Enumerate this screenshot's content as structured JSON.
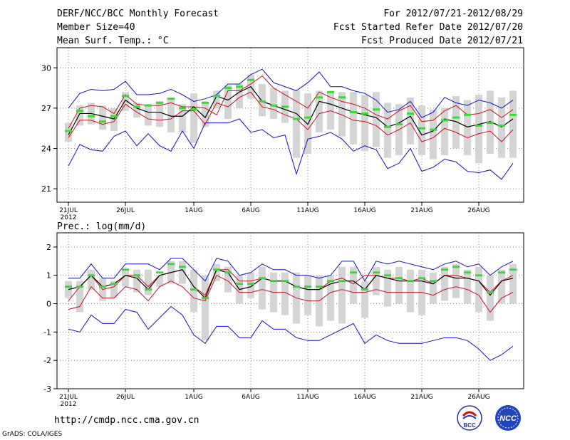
{
  "header": {
    "title": "DERF/NCC/BCC Monthly Forecast",
    "member_size": "Member Size=40",
    "variable": "Mean Surf. Temp.: °C",
    "period": "For 2012/07/21-2012/08/29",
    "start_date": "Fcst Started Refer Date 2012/07/20",
    "produced_date": "Fcst Produced Date 2012/07/21"
  },
  "footer": {
    "url": "http://cmdp.ncc.cma.gov.cn",
    "credit": "GrADS: COLA/IGES",
    "logo_left": "BCC",
    "logo_right": "NCC"
  },
  "colors": {
    "max_min": "#1010d0",
    "spread": "#d01020",
    "mean": "#000000",
    "box": "#d4d4d4",
    "obs": "#33dd33"
  },
  "chart_data": [
    {
      "type": "line",
      "title": "Mean Surf. Temp.: °C",
      "ylim": [
        20,
        31.5
      ],
      "yticks": [
        21,
        24,
        27,
        30
      ],
      "x_ticks": [
        "21JUL",
        "26JUL",
        "1AUG",
        "6AUG",
        "11AUG",
        "16AUG",
        "21AUG",
        "26AUG"
      ],
      "x_tick_day_index": [
        0,
        5,
        11,
        16,
        21,
        26,
        31,
        36
      ],
      "year_label": "2012",
      "grid": true,
      "days": 40,
      "series": [
        {
          "name": "max",
          "values": [
            27.0,
            28.1,
            28.4,
            28.3,
            28.4,
            29.0,
            28.0,
            28.0,
            28.1,
            28.4,
            28.0,
            27.5,
            27.7,
            28.0,
            28.8,
            28.8,
            29.5,
            29.9,
            28.9,
            28.6,
            28.3,
            28.9,
            29.7,
            28.6,
            28.6,
            28.3,
            28.1,
            27.6,
            26.7,
            26.9,
            27.5,
            26.3,
            26.7,
            27.8,
            27.4,
            27.2,
            27.6,
            27.4,
            27.0,
            27.6
          ]
        },
        {
          "name": "upper",
          "values": [
            25.5,
            27.0,
            27.2,
            27.1,
            26.6,
            28.0,
            27.3,
            27.2,
            27.2,
            27.4,
            27.1,
            27.1,
            27.0,
            26.5,
            28.3,
            28.3,
            28.8,
            29.4,
            28.5,
            28.0,
            27.5,
            27.0,
            28.2,
            27.8,
            27.5,
            27.3,
            27.0,
            26.5,
            26.2,
            26.8,
            27.2,
            26.0,
            26.1,
            26.8,
            27.2,
            26.5,
            26.6,
            26.9,
            26.3,
            26.9
          ]
        },
        {
          "name": "mean",
          "values": [
            25.0,
            26.6,
            26.6,
            26.4,
            26.2,
            27.6,
            27.0,
            26.7,
            26.7,
            26.4,
            26.4,
            27.1,
            26.3,
            27.9,
            27.6,
            28.2,
            28.6,
            27.5,
            27.2,
            26.9,
            26.6,
            25.8,
            27.5,
            27.3,
            27.0,
            26.7,
            26.5,
            26.3,
            25.6,
            25.9,
            26.4,
            25.0,
            25.3,
            26.2,
            26.0,
            25.6,
            25.8,
            26.0,
            25.6,
            26.2
          ]
        },
        {
          "name": "lower",
          "values": [
            24.8,
            26.1,
            26.1,
            25.8,
            26.0,
            27.3,
            26.7,
            26.2,
            26.1,
            26.2,
            26.8,
            26.8,
            25.8,
            27.4,
            27.1,
            27.8,
            28.2,
            27.1,
            26.9,
            26.5,
            26.2,
            25.4,
            26.6,
            26.8,
            26.5,
            26.1,
            26.0,
            25.7,
            25.0,
            25.4,
            25.9,
            24.5,
            24.8,
            25.5,
            25.2,
            24.8,
            25.1,
            25.3,
            24.5,
            25.4
          ]
        },
        {
          "name": "min",
          "values": [
            22.7,
            24.3,
            23.9,
            23.8,
            24.9,
            25.3,
            24.2,
            25.1,
            24.2,
            23.8,
            25.3,
            24.0,
            25.9,
            25.9,
            25.9,
            26.2,
            25.2,
            25.4,
            24.8,
            25.0,
            22.1,
            24.7,
            24.9,
            25.2,
            24.7,
            23.8,
            24.2,
            23.9,
            22.5,
            22.9,
            24.0,
            22.3,
            22.6,
            23.2,
            23.0,
            22.3,
            22.2,
            22.4,
            21.7,
            22.9
          ]
        },
        {
          "name": "box_top",
          "values": [
            25.9,
            27.2,
            27.4,
            27.2,
            27.0,
            28.2,
            27.4,
            27.3,
            27.5,
            27.8,
            27.3,
            28.1,
            27.5,
            28.3,
            28.7,
            28.8,
            29.5,
            28.8,
            28.5,
            28.3,
            28.3,
            28.1,
            28.3,
            28.2,
            28.2,
            28.2,
            28.0,
            28.2,
            27.4,
            27.3,
            27.8,
            27.2,
            26.9,
            27.0,
            27.9,
            27.6,
            28.0,
            28.3,
            27.8,
            28.3
          ]
        },
        {
          "name": "box_bottom",
          "values": [
            24.5,
            25.7,
            25.8,
            25.4,
            25.3,
            26.8,
            26.3,
            25.7,
            25.6,
            25.2,
            25.2,
            24.4,
            25.6,
            27.0,
            26.2,
            27.0,
            27.7,
            26.4,
            26.2,
            25.9,
            23.3,
            23.6,
            25.2,
            25.4,
            24.9,
            24.3,
            23.8,
            24.1,
            23.3,
            23.5,
            24.3,
            23.5,
            23.2,
            23.5,
            24.0,
            23.5,
            22.9,
            23.6,
            23.3,
            23.3
          ]
        },
        {
          "name": "observed",
          "values": [
            25.3,
            26.8,
            26.4,
            26.0,
            26.4,
            27.9,
            27.1,
            27.2,
            27.4,
            27.7,
            27.0,
            26.9,
            27.4,
            27.9,
            28.5,
            28.6,
            29.1,
            27.5,
            27.2,
            27.1,
            26.2,
            26.3,
            27.8,
            28.2,
            27.8,
            26.7,
            26.6,
            26.9,
            25.6,
            25.8,
            26.6,
            25.5,
            25.4,
            26.1,
            26.3,
            26.5,
            25.7,
            25.9,
            25.7,
            26.5
          ]
        }
      ]
    },
    {
      "type": "line",
      "title": "Prec.: log(mm/d)",
      "ylim": [
        -3,
        2.5
      ],
      "yticks": [
        -3,
        -2,
        -1,
        0,
        1,
        2
      ],
      "x_ticks": [
        "21JUL",
        "26JUL",
        "1AUG",
        "6AUG",
        "11AUG",
        "16AUG",
        "21AUG",
        "26AUG"
      ],
      "x_tick_day_index": [
        0,
        5,
        11,
        16,
        21,
        26,
        31,
        36
      ],
      "year_label": "2012",
      "grid": true,
      "days": 40,
      "series": [
        {
          "name": "max",
          "values": [
            0.9,
            0.9,
            1.4,
            0.9,
            0.9,
            1.4,
            1.4,
            1.4,
            1.2,
            1.6,
            1.6,
            1.2,
            0.8,
            1.6,
            1.5,
            1.0,
            1.1,
            1.4,
            1.2,
            1.2,
            1.0,
            1.0,
            0.9,
            1.0,
            1.5,
            1.5,
            0.8,
            1.5,
            1.4,
            1.5,
            1.4,
            1.3,
            1.2,
            1.4,
            1.5,
            1.3,
            1.4,
            1.0,
            1.3,
            1.5
          ]
        },
        {
          "name": "upper",
          "values": [
            0.1,
            0.6,
            1.0,
            0.5,
            0.6,
            1.0,
            1.0,
            0.6,
            1.0,
            1.1,
            1.2,
            0.6,
            0.3,
            1.2,
            1.2,
            0.8,
            0.8,
            0.9,
            0.8,
            0.8,
            0.6,
            0.5,
            0.5,
            0.8,
            0.9,
            0.7,
            1.0,
            1.0,
            0.9,
            0.9,
            0.8,
            0.9,
            0.7,
            1.0,
            1.0,
            0.9,
            0.8,
            0.4,
            0.8,
            1.0
          ]
        },
        {
          "name": "mean",
          "values": [
            0.5,
            0.6,
            1.0,
            0.6,
            0.7,
            1.0,
            0.9,
            0.5,
            1.0,
            1.1,
            1.2,
            0.6,
            0.2,
            1.2,
            1.1,
            0.5,
            0.6,
            0.9,
            0.8,
            0.8,
            0.6,
            0.5,
            0.5,
            0.7,
            0.8,
            0.8,
            0.5,
            1.0,
            0.9,
            0.8,
            0.8,
            0.8,
            0.7,
            1.0,
            0.9,
            0.9,
            0.8,
            0.3,
            0.8,
            0.9
          ]
        },
        {
          "name": "lower",
          "values": [
            -0.2,
            -0.1,
            0.6,
            0.2,
            0.2,
            0.6,
            0.5,
            0.1,
            0.6,
            0.8,
            0.6,
            0.2,
            0.1,
            1.0,
            0.8,
            0.4,
            0.4,
            0.5,
            0.4,
            0.4,
            0.2,
            0.1,
            0.1,
            0.4,
            0.5,
            0.4,
            0.4,
            0.5,
            0.4,
            0.4,
            0.4,
            0.4,
            0.3,
            0.5,
            0.6,
            0.5,
            0.3,
            -0.3,
            0.2,
            0.4
          ]
        },
        {
          "name": "min",
          "values": [
            -0.9,
            -1.0,
            -0.4,
            -0.7,
            -0.7,
            -0.2,
            -0.3,
            -0.9,
            -0.5,
            -0.1,
            -0.4,
            -1.1,
            -1.4,
            -0.8,
            -0.8,
            -1.2,
            -1.2,
            -0.6,
            -0.9,
            -0.9,
            -1.2,
            -1.3,
            -1.3,
            -1.1,
            -0.9,
            -0.7,
            -1.4,
            -1.1,
            -1.3,
            -1.4,
            -1.4,
            -1.4,
            -1.3,
            -1.2,
            -1.2,
            -1.3,
            -1.6,
            -2.0,
            -1.8,
            -1.5
          ]
        },
        {
          "name": "box_top",
          "values": [
            0.8,
            0.8,
            1.2,
            0.9,
            0.8,
            1.2,
            1.2,
            1.2,
            1.0,
            1.5,
            1.5,
            1.2,
            1.0,
            1.4,
            1.3,
            1.0,
            1.1,
            1.3,
            1.1,
            1.1,
            1.1,
            1.0,
            1.0,
            1.0,
            1.3,
            1.3,
            0.8,
            1.3,
            1.2,
            1.3,
            1.2,
            1.2,
            1.1,
            1.3,
            1.4,
            1.2,
            1.3,
            1.0,
            1.2,
            1.4
          ]
        },
        {
          "name": "box_bottom",
          "values": [
            0.2,
            -0.3,
            0.5,
            0.1,
            0.2,
            0.6,
            0.4,
            0.3,
            0.6,
            0.7,
            0.7,
            -0.3,
            -1.3,
            0.8,
            0.4,
            0.0,
            0.2,
            -0.2,
            -0.3,
            -0.4,
            -0.7,
            -0.4,
            -0.8,
            -0.6,
            -0.7,
            0.0,
            -0.5,
            0.3,
            -0.1,
            0.0,
            -0.3,
            -0.4,
            0.0,
            0.1,
            0.2,
            0.0,
            -0.3,
            -0.6,
            0.0,
            0.0
          ]
        },
        {
          "name": "observed",
          "values": [
            0.6,
            0.6,
            1.0,
            0.6,
            0.7,
            1.2,
            1.0,
            0.5,
            1.1,
            1.4,
            1.3,
            0.5,
            0.2,
            1.2,
            1.1,
            0.7,
            0.7,
            0.9,
            0.8,
            0.8,
            0.6,
            0.6,
            0.6,
            0.8,
            0.8,
            1.1,
            0.5,
            1.1,
            1.0,
            0.9,
            0.8,
            0.9,
            0.8,
            1.2,
            1.3,
            1.1,
            1.0,
            0.4,
            1.1,
            1.2
          ]
        }
      ]
    }
  ]
}
